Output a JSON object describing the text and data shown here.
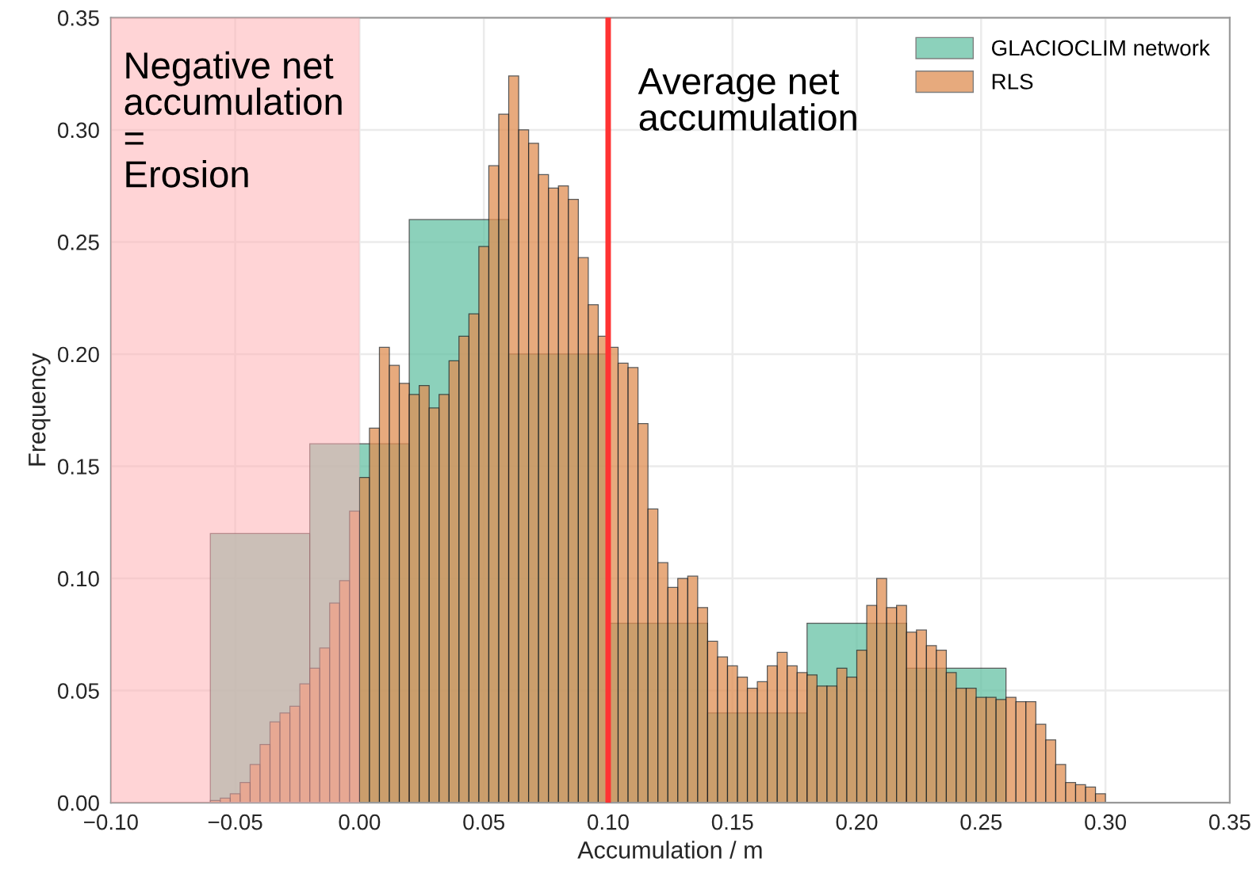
{
  "chart_data": {
    "type": "histogram",
    "xlabel": "Accumulation / m",
    "ylabel": "Frequency",
    "xlim": [
      -0.1,
      0.35
    ],
    "ylim": [
      0,
      0.35
    ],
    "xticks": [
      {
        "value": -0.1,
        "label": "−0.10"
      },
      {
        "value": -0.05,
        "label": "−0.05"
      },
      {
        "value": 0,
        "label": "0.00"
      },
      {
        "value": 0.05,
        "label": "0.05"
      },
      {
        "value": 0.1,
        "label": "0.10"
      },
      {
        "value": 0.15,
        "label": "0.15"
      },
      {
        "value": 0.2,
        "label": "0.20"
      },
      {
        "value": 0.25,
        "label": "0.25"
      },
      {
        "value": 0.3,
        "label": "0.30"
      },
      {
        "value": 0.35,
        "label": "0.35"
      }
    ],
    "yticks": [
      {
        "value": 0,
        "label": "0.00"
      },
      {
        "value": 0.05,
        "label": "0.05"
      },
      {
        "value": 0.1,
        "label": "0.10"
      },
      {
        "value": 0.15,
        "label": "0.15"
      },
      {
        "value": 0.2,
        "label": "0.20"
      },
      {
        "value": 0.25,
        "label": "0.25"
      },
      {
        "value": 0.3,
        "label": "0.30"
      },
      {
        "value": 0.35,
        "label": "0.35"
      }
    ],
    "grid": true,
    "legend": "top right",
    "series": [
      {
        "name": "GLACIOCLIM network",
        "color": "#66c2a5",
        "bins": [
          -0.1,
          -0.06,
          -0.02,
          0.02,
          0.06,
          0.1,
          0.14,
          0.18,
          0.22,
          0.26
        ],
        "values": [
          0,
          0.12,
          0.16,
          0.26,
          0.2,
          0.08,
          0.04,
          0.08,
          0.06
        ]
      },
      {
        "name": "RLS",
        "color": "#e08e52",
        "values": [
          0,
          0,
          0,
          0,
          0,
          0,
          0,
          0,
          0,
          0,
          0.001,
          0.002,
          0.004,
          0.009,
          0.017,
          0.026,
          0.036,
          0.04,
          0.043,
          0.053,
          0.06,
          0.069,
          0.089,
          0.099,
          0.13,
          0.145,
          0.167,
          0.203,
          0.195,
          0.187,
          0.182,
          0.186,
          0.176,
          0.182,
          0.197,
          0.208,
          0.218,
          0.248,
          0.284,
          0.307,
          0.324,
          0.3,
          0.294,
          0.28,
          0.274,
          0.275,
          0.269,
          0.243,
          0.222,
          0.208,
          0.203,
          0.196,
          0.194,
          0.169,
          0.131,
          0.107,
          0.096,
          0.1,
          0.101,
          0.087,
          0.072,
          0.065,
          0.061,
          0.056,
          0.051,
          0.054,
          0.061,
          0.067,
          0.061,
          0.058,
          0.057,
          0.052,
          0.052,
          0.06,
          0.056,
          0.068,
          0.088,
          0.1,
          0.087,
          0.088,
          0.076,
          0.077,
          0.07,
          0.068,
          0.058,
          0.051,
          0.051,
          0.047,
          0.047,
          0.046,
          0.047,
          0.045,
          0.045,
          0.035,
          0.028,
          0.017,
          0.009,
          0.008,
          0.007,
          0.004
        ]
      }
    ],
    "bins": [
      -0.1,
      -0.096,
      -0.092,
      -0.088,
      -0.084,
      -0.08,
      -0.076,
      -0.072,
      -0.068,
      -0.064,
      -0.06,
      -0.056,
      -0.052,
      -0.048,
      -0.044,
      -0.04,
      -0.036,
      -0.032,
      -0.028,
      -0.024,
      -0.02,
      -0.016,
      -0.012,
      -0.008,
      -0.004,
      0,
      0.004,
      0.008,
      0.012,
      0.016,
      0.02,
      0.024,
      0.028,
      0.032,
      0.036,
      0.04,
      0.044,
      0.048,
      0.052,
      0.056,
      0.06,
      0.064,
      0.068,
      0.072,
      0.076,
      0.08,
      0.084,
      0.088,
      0.092,
      0.096,
      0.1,
      0.104,
      0.108,
      0.112,
      0.116,
      0.12,
      0.124,
      0.128,
      0.132,
      0.136,
      0.14,
      0.144,
      0.148,
      0.152,
      0.156,
      0.16,
      0.164,
      0.168,
      0.172,
      0.176,
      0.18,
      0.184,
      0.188,
      0.192,
      0.196,
      0.2,
      0.204,
      0.208,
      0.212,
      0.216,
      0.22,
      0.224,
      0.228,
      0.232,
      0.236,
      0.24,
      0.244,
      0.248,
      0.252,
      0.256,
      0.26,
      0.264,
      0.268,
      0.272,
      0.276,
      0.28,
      0.284,
      0.288,
      0.292,
      0.296,
      0.3
    ],
    "bands": [
      {
        "axis": "x",
        "from": -0.1,
        "to": 0,
        "label": "Negative net\naccumulation\n=\nErosion",
        "color": "#ffb0b5"
      }
    ],
    "ref_lines": [
      {
        "axis": "x",
        "value": 0.1,
        "label": "Average net\naccumulation",
        "color": "#ff3333",
        "line_style": "solid"
      }
    ]
  }
}
